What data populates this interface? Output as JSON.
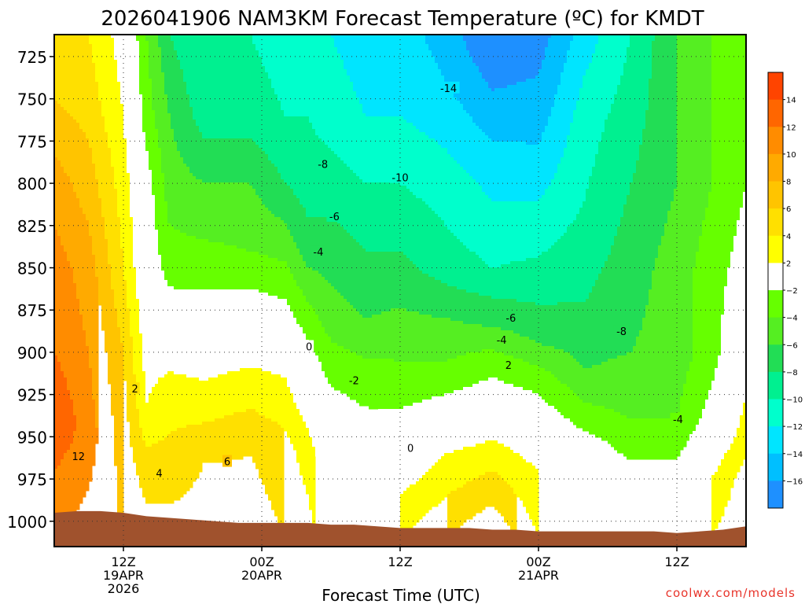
{
  "chart_data": {
    "type": "contour",
    "title": "2026041906 NAM3KM Forecast Temperature (ºC) for KMDT",
    "xlabel": "Forecast Time (UTC)",
    "ylabel": "",
    "credit": "coolwx.com/models",
    "y_axis": {
      "range": [
        712,
        1015
      ],
      "ticks": [
        {
          "value": 725,
          "label": "725"
        },
        {
          "value": 750,
          "label": "750"
        },
        {
          "value": 775,
          "label": "775"
        },
        {
          "value": 800,
          "label": "800"
        },
        {
          "value": 825,
          "label": "825"
        },
        {
          "value": 850,
          "label": "850"
        },
        {
          "value": 875,
          "label": "875"
        },
        {
          "value": 900,
          "label": "900"
        },
        {
          "value": 925,
          "label": "925"
        },
        {
          "value": 950,
          "label": "950"
        },
        {
          "value": 975,
          "label": "975"
        },
        {
          "value": 1000,
          "label": "1000"
        }
      ]
    },
    "x_axis": {
      "range": [
        0,
        60
      ],
      "ticks": [
        {
          "value": 6,
          "label": "12Z",
          "sub": [
            "19APR",
            "2026"
          ]
        },
        {
          "value": 18,
          "label": "00Z",
          "sub": [
            "20APR"
          ]
        },
        {
          "value": 30,
          "label": "12Z",
          "sub": []
        },
        {
          "value": 42,
          "label": "00Z",
          "sub": [
            "21APR"
          ]
        },
        {
          "value": 54,
          "label": "12Z",
          "sub": []
        }
      ]
    },
    "color_scale": [
      {
        "max": -16,
        "color": "#1e90ff"
      },
      {
        "max": -14,
        "color": "#00bfff"
      },
      {
        "max": -12,
        "color": "#00e5ff"
      },
      {
        "max": -10,
        "color": "#00ffcc"
      },
      {
        "max": -8,
        "color": "#00f090"
      },
      {
        "max": -6,
        "color": "#22dd55"
      },
      {
        "max": -4,
        "color": "#55ee22"
      },
      {
        "max": -2,
        "color": "#66ff00"
      },
      {
        "max": 2,
        "color": "#ffffff"
      },
      {
        "max": 4,
        "color": "#ffff00"
      },
      {
        "max": 6,
        "color": "#ffe000"
      },
      {
        "max": 8,
        "color": "#ffc400"
      },
      {
        "max": 10,
        "color": "#ffaa00"
      },
      {
        "max": 12,
        "color": "#ff8c00"
      },
      {
        "max": 14,
        "color": "#ff6600"
      },
      {
        "max": 99,
        "color": "#ff4400"
      }
    ],
    "colorbar_labels": [
      "14",
      "12",
      "10",
      "8",
      "6",
      "4",
      "2",
      "−2",
      "−4",
      "−6",
      "−8",
      "−10",
      "−12",
      "−14",
      "−16"
    ],
    "ground_color": "#a0522d",
    "freezing_line_color": "#b0105a",
    "surface_pressure": {
      "t": [
        0,
        2,
        4,
        6,
        8,
        10,
        12,
        14,
        16,
        18,
        20,
        22,
        24,
        26,
        28,
        30,
        32,
        34,
        36,
        38,
        40,
        42,
        44,
        46,
        48,
        50,
        52,
        54,
        56,
        58,
        60
      ],
      "p": [
        995,
        994,
        994,
        995,
        997,
        998,
        999,
        1000,
        1001,
        1001,
        1001,
        1001,
        1002,
        1002,
        1003,
        1004,
        1004,
        1004,
        1004,
        1005,
        1005,
        1006,
        1006,
        1006,
        1006,
        1006,
        1006,
        1007,
        1006,
        1005,
        1003
      ]
    },
    "contour_labels": [
      {
        "text": "-14",
        "t": 34.2,
        "p": 744
      },
      {
        "text": "-8",
        "t": 23.3,
        "p": 789
      },
      {
        "text": "-10",
        "t": 30.0,
        "p": 797
      },
      {
        "text": "-6",
        "t": 24.3,
        "p": 820
      },
      {
        "text": "-4",
        "t": 22.9,
        "p": 841
      },
      {
        "text": "-6",
        "t": 39.6,
        "p": 880
      },
      {
        "text": "-4",
        "t": 38.8,
        "p": 893
      },
      {
        "text": "-8",
        "t": 49.2,
        "p": 888
      },
      {
        "text": "0",
        "t": 22.1,
        "p": 897
      },
      {
        "text": "-2",
        "t": 26.0,
        "p": 917
      },
      {
        "text": "2",
        "t": 39.4,
        "p": 908
      },
      {
        "text": "-4",
        "t": 54.1,
        "p": 940
      },
      {
        "text": "0",
        "t": 30.9,
        "p": 957
      },
      {
        "text": "2",
        "t": 7.0,
        "p": 922
      },
      {
        "text": "4",
        "t": 9.1,
        "p": 972
      },
      {
        "text": "6",
        "t": 15.0,
        "p": 965
      },
      {
        "text": "12",
        "t": 2.1,
        "p": 962
      }
    ]
  }
}
